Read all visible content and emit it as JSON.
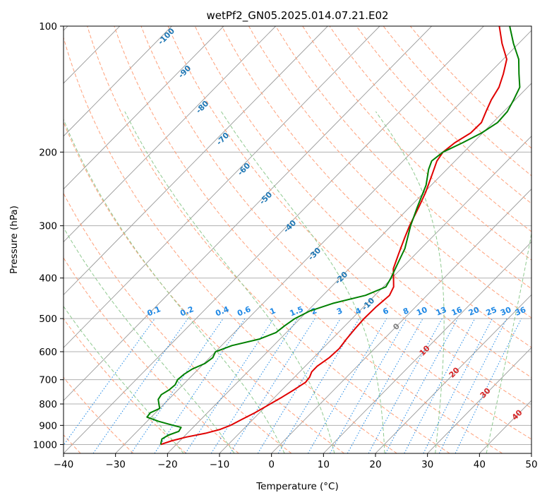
{
  "chart_data": {
    "type": "line",
    "subtype": "skew-T log-P",
    "title": "wetPf2_GN05.2025.014.07.21.E02",
    "xlabel": "Temperature (°C)",
    "ylabel": "Pressure (hPa)",
    "xlim": [
      -40,
      50
    ],
    "ylim": [
      1050,
      100
    ],
    "y_scale": "log",
    "grid": true,
    "x_ticks": [
      "−40",
      "−30",
      "−20",
      "−10",
      "0",
      "10",
      "20",
      "30",
      "40",
      "50"
    ],
    "y_ticks": [
      "100",
      "200",
      "300",
      "400",
      "500",
      "600",
      "700",
      "800",
      "900",
      "1000"
    ],
    "series": [
      {
        "color": "#e00000",
        "points": [
          [
            1000,
            -23
          ],
          [
            980,
            -21.6
          ],
          [
            960,
            -19.5
          ],
          [
            940,
            -16.5
          ],
          [
            920,
            -14.4
          ],
          [
            900,
            -13.2
          ],
          [
            870,
            -12.1
          ],
          [
            840,
            -10.9
          ],
          [
            800,
            -9.6
          ],
          [
            770,
            -8.6
          ],
          [
            740,
            -7.7
          ],
          [
            710,
            -6.9
          ],
          [
            690,
            -7.1
          ],
          [
            670,
            -7.7
          ],
          [
            650,
            -7.7
          ],
          [
            620,
            -7.0
          ],
          [
            590,
            -6.8
          ],
          [
            560,
            -7.2
          ],
          [
            530,
            -7.5
          ],
          [
            500,
            -7.7
          ],
          [
            470,
            -7.6
          ],
          [
            440,
            -7.2
          ],
          [
            420,
            -8.0
          ],
          [
            400,
            -9.7
          ],
          [
            380,
            -11.5
          ],
          [
            350,
            -13.3
          ],
          [
            320,
            -15.2
          ],
          [
            300,
            -16.5
          ],
          [
            270,
            -18.3
          ],
          [
            250,
            -19.7
          ],
          [
            230,
            -21.5
          ],
          [
            210,
            -23.5
          ],
          [
            200,
            -24.0
          ],
          [
            190,
            -23.5
          ],
          [
            180,
            -22.3
          ],
          [
            170,
            -22.2
          ],
          [
            160,
            -23.4
          ],
          [
            150,
            -24.6
          ],
          [
            140,
            -25.5
          ],
          [
            130,
            -27.2
          ],
          [
            120,
            -29.3
          ],
          [
            110,
            -33.2
          ],
          [
            100,
            -37.0
          ]
        ]
      },
      {
        "color": "#008000",
        "points": [
          [
            1000,
            -23
          ],
          [
            970,
            -23.8
          ],
          [
            950,
            -23.3
          ],
          [
            930,
            -22.0
          ],
          [
            910,
            -22.3
          ],
          [
            900,
            -24.2
          ],
          [
            880,
            -27.8
          ],
          [
            860,
            -30.8
          ],
          [
            840,
            -31.0
          ],
          [
            820,
            -30.0
          ],
          [
            800,
            -31.0
          ],
          [
            780,
            -32.0
          ],
          [
            760,
            -32.3
          ],
          [
            740,
            -31.7
          ],
          [
            720,
            -31.5
          ],
          [
            700,
            -32.0
          ],
          [
            680,
            -31.8
          ],
          [
            660,
            -31.2
          ],
          [
            640,
            -29.8
          ],
          [
            620,
            -29.4
          ],
          [
            600,
            -30.0
          ],
          [
            580,
            -28.0
          ],
          [
            560,
            -24.0
          ],
          [
            540,
            -22.0
          ],
          [
            520,
            -21.6
          ],
          [
            500,
            -21.0
          ],
          [
            480,
            -19.6
          ],
          [
            460,
            -16.6
          ],
          [
            440,
            -11.8
          ],
          [
            420,
            -9.5
          ],
          [
            400,
            -10.2
          ],
          [
            370,
            -11.6
          ],
          [
            340,
            -13.1
          ],
          [
            300,
            -16.3
          ],
          [
            270,
            -18.6
          ],
          [
            240,
            -21.0
          ],
          [
            220,
            -23.5
          ],
          [
            210,
            -24.5
          ],
          [
            200,
            -24.0
          ],
          [
            190,
            -22.0
          ],
          [
            180,
            -20.2
          ],
          [
            170,
            -19.1
          ],
          [
            160,
            -19.3
          ],
          [
            150,
            -20.3
          ],
          [
            140,
            -21.5
          ],
          [
            130,
            -24.2
          ],
          [
            120,
            -27.0
          ],
          [
            110,
            -31.0
          ],
          [
            100,
            -35.0
          ]
        ]
      }
    ],
    "dry_adiabats_C": [
      -100,
      -90,
      -80,
      -70,
      -60,
      -50,
      -40,
      -30,
      -20,
      -10,
      0,
      10,
      20,
      30,
      40,
      50,
      60,
      70,
      80,
      90,
      100,
      110,
      120,
      130,
      140,
      150
    ],
    "moist_adiabats_C": [
      -20,
      -10,
      0,
      10,
      20,
      30,
      40
    ],
    "mixing_ratio_gkg": [
      0.1,
      0.2,
      0.4,
      0.6,
      1,
      1.5,
      2,
      3,
      4,
      6,
      8,
      10,
      13,
      16,
      20,
      25,
      30,
      36
    ],
    "mixing_ratio_labels": [
      "0.1",
      "0.2",
      "0.4",
      "0.6",
      "1",
      "1.5",
      "2",
      "3",
      "4",
      "6",
      "8",
      "10",
      "13",
      "16",
      "20",
      "25",
      "30",
      "36"
    ],
    "isotherm_labels": [
      {
        "text": "-100",
        "color": "#1f77b4"
      },
      {
        "text": "-90",
        "color": "#1f77b4"
      },
      {
        "text": "-80",
        "color": "#1f77b4"
      },
      {
        "text": "-70",
        "color": "#1f77b4"
      },
      {
        "text": "-60",
        "color": "#1f77b4"
      },
      {
        "text": "-50",
        "color": "#1f77b4"
      },
      {
        "text": "-40",
        "color": "#1f77b4"
      },
      {
        "text": "-30",
        "color": "#1f77b4"
      },
      {
        "text": "-20",
        "color": "#1f77b4"
      },
      {
        "text": "-10",
        "color": "#1f77b4"
      },
      {
        "text": "0",
        "color": "#808080"
      },
      {
        "text": "10",
        "color": "#d62728"
      },
      {
        "text": "20",
        "color": "#d62728"
      },
      {
        "text": "30",
        "color": "#d62728"
      },
      {
        "text": "40",
        "color": "#d62728"
      }
    ],
    "colors": {
      "isotherm": "#9a9a9a",
      "dry_adiabat": "#ffa07a",
      "moist_adiabat": "#8fc98f",
      "mixing_ratio": "#1e88e5",
      "isobar": "#b0b0b0"
    }
  }
}
